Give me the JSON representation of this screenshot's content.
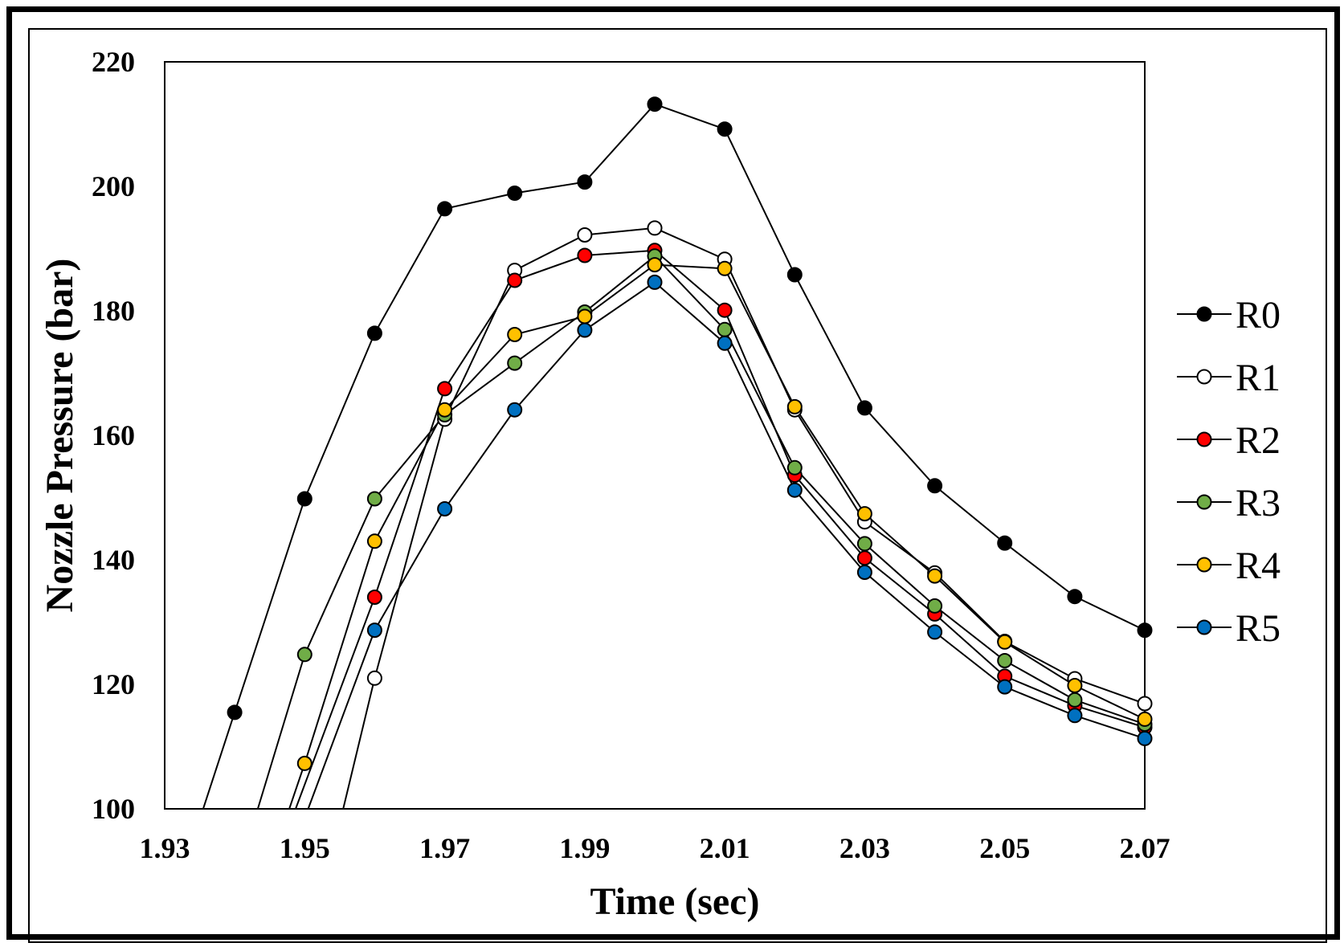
{
  "chart_data": {
    "type": "line",
    "title": "",
    "xlabel": "Time (sec)",
    "ylabel": "Nozzle Pressure (bar)",
    "xlim": [
      1.93,
      2.07
    ],
    "ylim": [
      100,
      220
    ],
    "x_ticks": [
      "1.93",
      "1.95",
      "1.97",
      "1.99",
      "2.01",
      "2.03",
      "2.05",
      "2.07"
    ],
    "y_ticks": [
      "100",
      "120",
      "140",
      "160",
      "180",
      "200",
      "220"
    ],
    "legend_position": "right",
    "grid": false,
    "x": [
      1.94,
      1.95,
      1.96,
      1.97,
      1.98,
      1.99,
      2.0,
      2.01,
      2.02,
      2.03,
      2.04,
      2.05,
      2.06,
      2.07
    ],
    "series": [
      {
        "name": "R0",
        "color": "#000000",
        "start": [
          1.9355,
          100
        ],
        "values": [
          115.5,
          149.8,
          176.4,
          196.4,
          198.9,
          200.7,
          213.2,
          209.2,
          185.8,
          164.4,
          151.9,
          142.7,
          134.1,
          128.7
        ]
      },
      {
        "name": "R1",
        "color": "#ffffff",
        "start": [
          1.9555,
          100
        ],
        "values": [
          null,
          null,
          121.0,
          162.6,
          186.5,
          192.2,
          193.3,
          188.3,
          164.1,
          146.1,
          137.9,
          126.9,
          120.9,
          116.9
        ]
      },
      {
        "name": "R2",
        "color": "#ff0000",
        "start": [
          1.9487,
          100
        ],
        "values": [
          null,
          null,
          134.0,
          167.5,
          184.9,
          188.9,
          189.7,
          180.1,
          153.6,
          140.3,
          131.3,
          121.3,
          116.6,
          113.1
        ]
      },
      {
        "name": "R3",
        "color": "#70ad47",
        "start": [
          1.9433,
          100
        ],
        "values": [
          null,
          124.8,
          149.8,
          163.3,
          171.6,
          179.8,
          188.8,
          177.0,
          154.8,
          142.6,
          132.6,
          123.8,
          117.5,
          113.6
        ]
      },
      {
        "name": "R4",
        "color": "#ffc000",
        "start": [
          1.9478,
          100
        ],
        "values": [
          null,
          107.3,
          143.0,
          164.1,
          176.2,
          179.1,
          187.4,
          186.8,
          164.6,
          147.4,
          137.4,
          126.8,
          119.8,
          114.4
        ]
      },
      {
        "name": "R5",
        "color": "#0070c0",
        "start": [
          1.9505,
          100
        ],
        "values": [
          null,
          null,
          128.7,
          148.2,
          164.1,
          176.9,
          184.6,
          174.8,
          151.2,
          138.0,
          128.4,
          119.6,
          115.0,
          111.3
        ]
      }
    ]
  }
}
